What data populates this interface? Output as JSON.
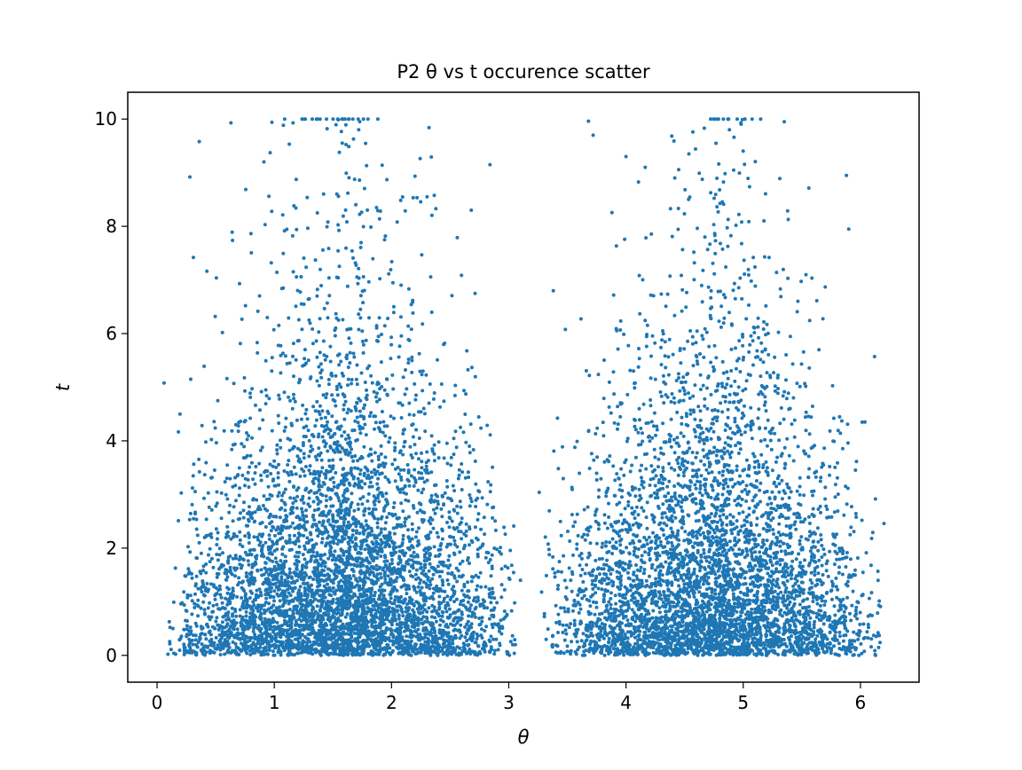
{
  "chart_data": {
    "type": "scatter",
    "title": "P2 θ vs t occurence scatter",
    "xlabel": "θ",
    "ylabel": "t",
    "xlim": [
      -0.25,
      6.5
    ],
    "ylim": [
      -0.5,
      10.5
    ],
    "xticks": [
      0,
      1,
      2,
      3,
      4,
      5,
      6
    ],
    "yticks": [
      0,
      2,
      4,
      6,
      8,
      10
    ],
    "grid": false,
    "marker_color": "#1f77b4",
    "marker_size": 2,
    "series": [
      {
        "clusters": [
          {
            "theta_range": [
              0.05,
              3.1
            ],
            "theta_peak": 1.6,
            "t_range": [
              0,
              10
            ],
            "count": 5200
          },
          {
            "theta_range": [
              3.25,
              6.2
            ],
            "theta_peak": 4.75,
            "t_range": [
              0,
              10
            ],
            "count": 4800
          }
        ],
        "t_distribution": "exponential, density highest near t=0, mean about 1.8",
        "sample_points": [
          [
            0.06,
            5.08
          ],
          [
            0.36,
            9.58
          ],
          [
            0.28,
            8.92
          ],
          [
            0.63,
            9.93
          ],
          [
            0.98,
            9.94
          ],
          [
            1.16,
            9.93
          ],
          [
            1.45,
            9.82
          ],
          [
            1.58,
            9.55
          ],
          [
            1.72,
            9.8
          ],
          [
            2.32,
            9.84
          ],
          [
            2.84,
            9.15
          ],
          [
            3.68,
            9.96
          ],
          [
            3.72,
            9.7
          ],
          [
            4.0,
            9.3
          ],
          [
            4.57,
            9.76
          ],
          [
            4.98,
            9.93
          ],
          [
            5.35,
            9.95
          ],
          [
            5.88,
            8.95
          ],
          [
            6.2,
            2.46
          ],
          [
            3.1,
            1.4
          ],
          [
            3.28,
            1.18
          ],
          [
            3.38,
            6.8
          ],
          [
            5.9,
            7.95
          ],
          [
            2.68,
            8.3
          ],
          [
            0.28,
            0.05
          ],
          [
            6.16,
            0.37
          ],
          [
            2.97,
            2.26
          ],
          [
            3.26,
            3.04
          ],
          [
            0.31,
            7.42
          ],
          [
            6.12,
            5.57
          ]
        ]
      }
    ]
  }
}
